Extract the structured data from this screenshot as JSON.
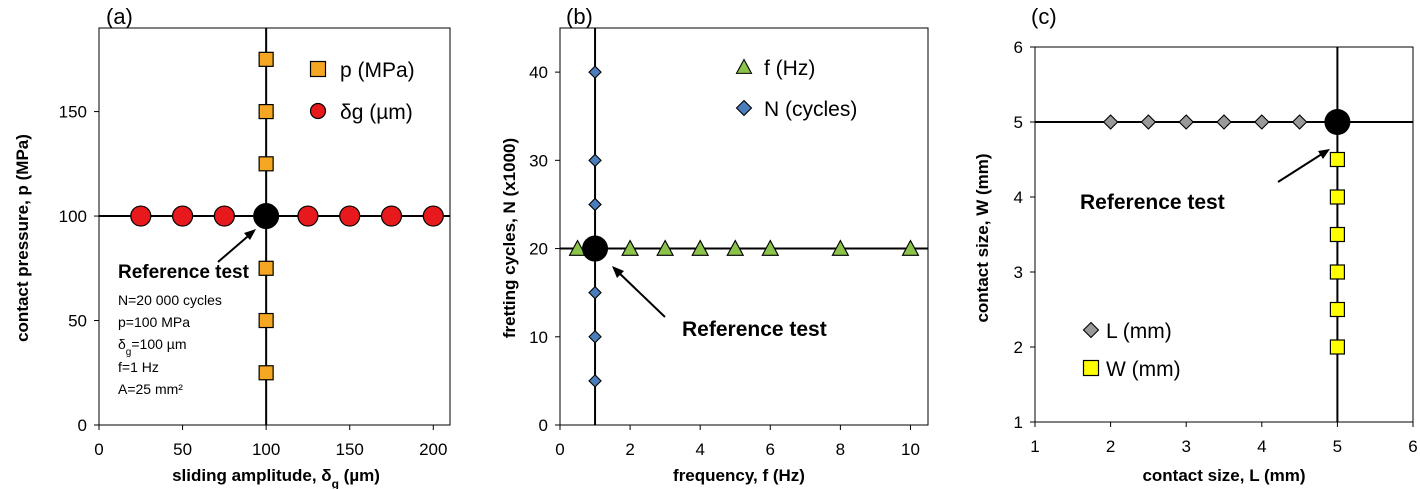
{
  "chart_data": [
    {
      "type": "scatter",
      "panel_label": "(a)",
      "xlabel": "sliding amplitude, δ",
      "xlabel_sub": "g",
      "xlabel_unit": " (µm)",
      "ylabel": "contact pressure, p (MPa)",
      "xlim": [
        0,
        210
      ],
      "ylim": [
        0,
        190
      ],
      "xticks": [
        0,
        50,
        100,
        150,
        200
      ],
      "yticks": [
        0,
        50,
        100,
        150
      ],
      "reference_lines": {
        "x": 100,
        "y": 100
      },
      "series": [
        {
          "name": "p (MPa)",
          "marker": "square",
          "color": "#f5a623",
          "x": [
            100,
            100,
            100,
            100,
            100,
            100
          ],
          "y": [
            25,
            50,
            75,
            125,
            150,
            175
          ]
        },
        {
          "name": "δg (µm)",
          "marker": "circle",
          "color": "#e8191c",
          "x": [
            25,
            50,
            75,
            125,
            150,
            175,
            200
          ],
          "y": [
            100,
            100,
            100,
            100,
            100,
            100,
            100
          ]
        }
      ],
      "reference_point": {
        "x": 100,
        "y": 100
      },
      "annotation": {
        "title": "Reference test",
        "lines": [
          "N=20 000 cycles",
          "p=100 MPa",
          "δ",
          "f=1 Hz",
          "A=25 mm²"
        ],
        "delta_sub": "g",
        "delta_rest": "=100 µm"
      }
    },
    {
      "type": "scatter",
      "panel_label": "(b)",
      "xlabel": "frequency, f (Hz)",
      "ylabel": "fretting cycles, N (x1000)",
      "xlim": [
        0,
        10.5
      ],
      "ylim": [
        0,
        45
      ],
      "xticks": [
        0,
        2,
        4,
        6,
        8,
        10
      ],
      "yticks": [
        0,
        10,
        20,
        30,
        40
      ],
      "reference_lines": {
        "x": 1,
        "y": 20
      },
      "series": [
        {
          "name": "f (Hz)",
          "marker": "triangle",
          "color": "#8bc34a",
          "x": [
            0.5,
            2,
            3,
            4,
            5,
            6,
            8,
            10
          ],
          "y": [
            20,
            20,
            20,
            20,
            20,
            20,
            20,
            20
          ]
        },
        {
          "name": "N (cycles)",
          "marker": "diamond",
          "color": "#4a7ebb",
          "x": [
            1,
            1,
            1,
            1,
            1,
            1
          ],
          "y": [
            5,
            10,
            15,
            30,
            40,
            25
          ]
        }
      ],
      "reference_point": {
        "x": 1,
        "y": 20
      },
      "annotation": {
        "title": "Reference test"
      }
    },
    {
      "type": "scatter",
      "panel_label": "(c)",
      "xlabel": "contact size, L  (mm)",
      "ylabel": "contact size, W  (mm)",
      "xlim": [
        1,
        6
      ],
      "ylim": [
        1,
        6
      ],
      "xticks": [
        1,
        2,
        3,
        4,
        5,
        6
      ],
      "yticks": [
        1,
        2,
        3,
        4,
        5,
        6
      ],
      "reference_lines": {
        "x": 5,
        "y": 5
      },
      "series": [
        {
          "name": "L (mm)",
          "marker": "diamond",
          "color": "#999999",
          "x": [
            2,
            2.5,
            3,
            3.5,
            4,
            4.5
          ],
          "y": [
            5,
            5,
            5,
            5,
            5,
            5
          ]
        },
        {
          "name": "W (mm)",
          "marker": "square",
          "color": "#ffff00",
          "x": [
            5,
            5,
            5,
            5,
            5,
            5
          ],
          "y": [
            2,
            2.5,
            3,
            3.5,
            4,
            4.5
          ]
        }
      ],
      "reference_point": {
        "x": 5,
        "y": 5
      },
      "annotation": {
        "title": "Reference test"
      }
    }
  ]
}
